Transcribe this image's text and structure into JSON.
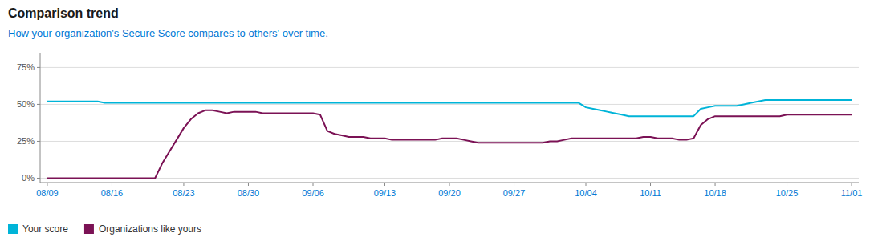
{
  "chart_data": {
    "type": "line",
    "title": "Comparison trend",
    "subtitle": "How your organization's Secure Score compares to others' over time.",
    "categories": [
      "08/09",
      null,
      null,
      null,
      null,
      null,
      null,
      null,
      null,
      "08/16",
      null,
      null,
      null,
      null,
      null,
      null,
      null,
      null,
      null,
      "08/23",
      null,
      null,
      null,
      null,
      null,
      null,
      null,
      null,
      "08/30",
      null,
      null,
      null,
      null,
      null,
      null,
      null,
      null,
      "09/06",
      null,
      null,
      null,
      null,
      null,
      null,
      null,
      null,
      null,
      "09/13",
      null,
      null,
      null,
      null,
      null,
      null,
      null,
      null,
      "09/20",
      null,
      null,
      null,
      null,
      null,
      null,
      null,
      null,
      "09/27",
      null,
      null,
      null,
      null,
      null,
      null,
      null,
      null,
      null,
      "10/04",
      null,
      null,
      null,
      null,
      null,
      null,
      null,
      null,
      "10/11",
      null,
      null,
      null,
      null,
      null,
      null,
      null,
      null,
      "10/18",
      null,
      null,
      null,
      null,
      null,
      null,
      null,
      null,
      null,
      "10/25",
      null,
      null,
      null,
      null,
      null,
      null,
      null,
      null,
      "11/01"
    ],
    "series": [
      {
        "name": "Your score",
        "color": "#00b4d8",
        "values": [
          52,
          52,
          52,
          52,
          52,
          52,
          52,
          52,
          51,
          51,
          51,
          51,
          51,
          51,
          51,
          51,
          51,
          51,
          51,
          51,
          51,
          51,
          51,
          51,
          51,
          51,
          51,
          51,
          51,
          51,
          51,
          51,
          51,
          51,
          51,
          51,
          51,
          51,
          51,
          51,
          51,
          51,
          51,
          51,
          51,
          51,
          51,
          51,
          51,
          51,
          51,
          51,
          51,
          51,
          51,
          51,
          51,
          51,
          51,
          51,
          51,
          51,
          51,
          51,
          51,
          51,
          51,
          51,
          51,
          51,
          51,
          51,
          51,
          51,
          51,
          48,
          47,
          46,
          45,
          44,
          43,
          42,
          42,
          42,
          42,
          42,
          42,
          42,
          42,
          42,
          42,
          47,
          48,
          49,
          49,
          49,
          49,
          50,
          51,
          52,
          53,
          53,
          53,
          53,
          53,
          53,
          53,
          53,
          53,
          53,
          53,
          53,
          53
        ]
      },
      {
        "name": "Organizations like yours",
        "color": "#7b1255",
        "values": [
          0,
          0,
          0,
          0,
          0,
          0,
          0,
          0,
          0,
          0,
          0,
          0,
          0,
          0,
          0,
          0,
          10,
          18,
          26,
          34,
          40,
          44,
          46,
          46,
          45,
          44,
          45,
          45,
          45,
          45,
          44,
          44,
          44,
          44,
          44,
          44,
          44,
          44,
          43,
          32,
          30,
          29,
          28,
          28,
          28,
          27,
          27,
          27,
          26,
          26,
          26,
          26,
          26,
          26,
          26,
          27,
          27,
          27,
          26,
          25,
          24,
          24,
          24,
          24,
          24,
          24,
          24,
          24,
          24,
          24,
          25,
          25,
          26,
          27,
          27,
          27,
          27,
          27,
          27,
          27,
          27,
          27,
          27,
          28,
          28,
          27,
          27,
          27,
          26,
          26,
          27,
          36,
          40,
          42,
          42,
          42,
          42,
          42,
          42,
          42,
          42,
          42,
          42,
          43,
          43,
          43,
          43,
          43,
          43,
          43,
          43,
          43,
          43
        ]
      }
    ],
    "ylim": [
      -3,
      85
    ],
    "yticks": [
      {
        "value": 0,
        "label": "0%"
      },
      {
        "value": 25,
        "label": "25%"
      },
      {
        "value": 50,
        "label": "50%"
      },
      {
        "value": 75,
        "label": "75%"
      }
    ],
    "grid": true,
    "legend": "lower left"
  }
}
